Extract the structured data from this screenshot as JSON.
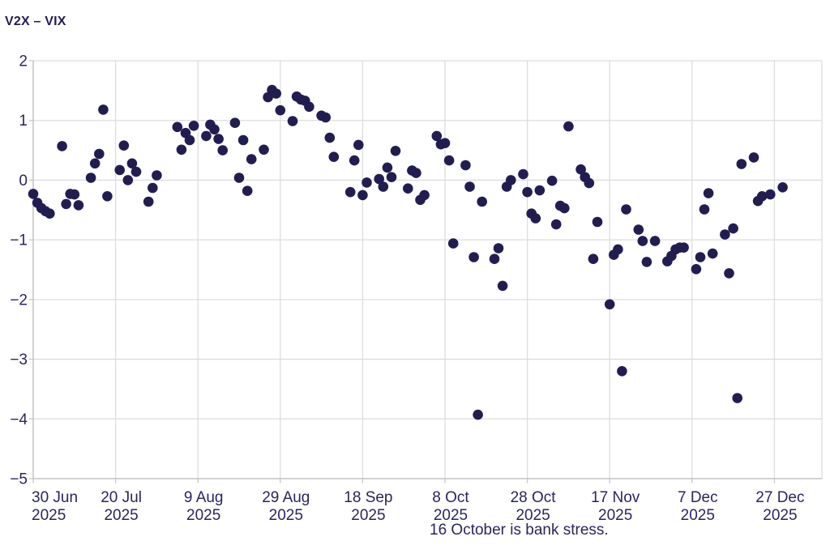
{
  "title": "V2X – VIX",
  "footnote": "16 October is bank stress.",
  "colors": {
    "dot": "#221d51",
    "text": "#2a255e",
    "title_text": "#221d51",
    "grid": "#dddddd",
    "axis": "#c6c6c6",
    "background": "#ffffff"
  },
  "chart_data": {
    "type": "scatter",
    "title": "V2X – VIX",
    "xlabel": "",
    "ylabel": "",
    "grid": true,
    "legend": "none",
    "annotation": "16 October is bank stress.",
    "marker": {
      "shape": "circle",
      "radius_px": 6.3
    },
    "x_axis": {
      "start_date": "2025-06-30",
      "tick_interval_days": 20,
      "ticks": [
        {
          "l1": "30 Jun",
          "l2": "2025"
        },
        {
          "l1": "20 Jul",
          "l2": "2025"
        },
        {
          "l1": "9 Aug",
          "l2": "2025"
        },
        {
          "l1": "29 Aug",
          "l2": "2025"
        },
        {
          "l1": "18 Sep",
          "l2": "2025"
        },
        {
          "l1": "8 Oct",
          "l2": "2025"
        },
        {
          "l1": "28 Oct",
          "l2": "2025"
        },
        {
          "l1": "17 Nov",
          "l2": "2025"
        },
        {
          "l1": "7 Dec",
          "l2": "2025"
        },
        {
          "l1": "27 Dec",
          "l2": "2025"
        }
      ]
    },
    "y_axis": {
      "min": -5,
      "max": 2,
      "tick_step": 1,
      "tick_labels": [
        "2",
        "1",
        "0",
        "−1",
        "−2",
        "−3",
        "−4",
        "−5"
      ]
    },
    "points": [
      {
        "d": "2025-06-30",
        "v": -0.23
      },
      {
        "d": "2025-07-01",
        "v": -0.38
      },
      {
        "d": "2025-07-02",
        "v": -0.47
      },
      {
        "d": "2025-07-03",
        "v": -0.52
      },
      {
        "d": "2025-07-04",
        "v": -0.56
      },
      {
        "d": "2025-07-07",
        "v": 0.57
      },
      {
        "d": "2025-07-08",
        "v": -0.4
      },
      {
        "d": "2025-07-09",
        "v": -0.23
      },
      {
        "d": "2025-07-10",
        "v": -0.24
      },
      {
        "d": "2025-07-11",
        "v": -0.42
      },
      {
        "d": "2025-07-14",
        "v": 0.04
      },
      {
        "d": "2025-07-15",
        "v": 0.28
      },
      {
        "d": "2025-07-16",
        "v": 0.44
      },
      {
        "d": "2025-07-17",
        "v": 1.18
      },
      {
        "d": "2025-07-18",
        "v": -0.27
      },
      {
        "d": "2025-07-21",
        "v": 0.17
      },
      {
        "d": "2025-07-22",
        "v": 0.58
      },
      {
        "d": "2025-07-23",
        "v": 0.0
      },
      {
        "d": "2025-07-24",
        "v": 0.28
      },
      {
        "d": "2025-07-25",
        "v": 0.14
      },
      {
        "d": "2025-07-28",
        "v": -0.36
      },
      {
        "d": "2025-07-29",
        "v": -0.13
      },
      {
        "d": "2025-07-30",
        "v": 0.08
      },
      {
        "d": "2025-08-04",
        "v": 0.89
      },
      {
        "d": "2025-08-05",
        "v": 0.51
      },
      {
        "d": "2025-08-06",
        "v": 0.79
      },
      {
        "d": "2025-08-07",
        "v": 0.67
      },
      {
        "d": "2025-08-08",
        "v": 0.91
      },
      {
        "d": "2025-08-11",
        "v": 0.74
      },
      {
        "d": "2025-08-12",
        "v": 0.93
      },
      {
        "d": "2025-08-13",
        "v": 0.85
      },
      {
        "d": "2025-08-14",
        "v": 0.69
      },
      {
        "d": "2025-08-15",
        "v": 0.5
      },
      {
        "d": "2025-08-18",
        "v": 0.96
      },
      {
        "d": "2025-08-19",
        "v": 0.04
      },
      {
        "d": "2025-08-20",
        "v": 0.67
      },
      {
        "d": "2025-08-21",
        "v": -0.18
      },
      {
        "d": "2025-08-22",
        "v": 0.35
      },
      {
        "d": "2025-08-25",
        "v": 0.51
      },
      {
        "d": "2025-08-26",
        "v": 1.39
      },
      {
        "d": "2025-08-27",
        "v": 1.51
      },
      {
        "d": "2025-08-28",
        "v": 1.45
      },
      {
        "d": "2025-08-29",
        "v": 1.17
      },
      {
        "d": "2025-09-01",
        "v": 0.99
      },
      {
        "d": "2025-09-02",
        "v": 1.4
      },
      {
        "d": "2025-09-03",
        "v": 1.35
      },
      {
        "d": "2025-09-04",
        "v": 1.33
      },
      {
        "d": "2025-09-05",
        "v": 1.23
      },
      {
        "d": "2025-09-08",
        "v": 1.08
      },
      {
        "d": "2025-09-09",
        "v": 1.05
      },
      {
        "d": "2025-09-10",
        "v": 0.71
      },
      {
        "d": "2025-09-11",
        "v": 0.39
      },
      {
        "d": "2025-09-15",
        "v": -0.2
      },
      {
        "d": "2025-09-16",
        "v": 0.33
      },
      {
        "d": "2025-09-17",
        "v": 0.59
      },
      {
        "d": "2025-09-18",
        "v": -0.25
      },
      {
        "d": "2025-09-19",
        "v": -0.04
      },
      {
        "d": "2025-09-22",
        "v": 0.02
      },
      {
        "d": "2025-09-23",
        "v": -0.11
      },
      {
        "d": "2025-09-24",
        "v": 0.21
      },
      {
        "d": "2025-09-25",
        "v": 0.05
      },
      {
        "d": "2025-09-26",
        "v": 0.49
      },
      {
        "d": "2025-09-29",
        "v": -0.14
      },
      {
        "d": "2025-09-30",
        "v": 0.16
      },
      {
        "d": "2025-10-01",
        "v": 0.12
      },
      {
        "d": "2025-10-02",
        "v": -0.33
      },
      {
        "d": "2025-10-03",
        "v": -0.25
      },
      {
        "d": "2025-10-06",
        "v": 0.74
      },
      {
        "d": "2025-10-07",
        "v": 0.6
      },
      {
        "d": "2025-10-08",
        "v": 0.62
      },
      {
        "d": "2025-10-09",
        "v": 0.33
      },
      {
        "d": "2025-10-10",
        "v": -1.06
      },
      {
        "d": "2025-10-13",
        "v": 0.25
      },
      {
        "d": "2025-10-14",
        "v": -0.11
      },
      {
        "d": "2025-10-15",
        "v": -1.29
      },
      {
        "d": "2025-10-16",
        "v": -3.93
      },
      {
        "d": "2025-10-17",
        "v": -0.36
      },
      {
        "d": "2025-10-20",
        "v": -1.32
      },
      {
        "d": "2025-10-21",
        "v": -1.14
      },
      {
        "d": "2025-10-22",
        "v": -1.77
      },
      {
        "d": "2025-10-23",
        "v": -0.11
      },
      {
        "d": "2025-10-24",
        "v": 0.0
      },
      {
        "d": "2025-10-27",
        "v": 0.1
      },
      {
        "d": "2025-10-28",
        "v": -0.2
      },
      {
        "d": "2025-10-29",
        "v": -0.56
      },
      {
        "d": "2025-10-30",
        "v": -0.64
      },
      {
        "d": "2025-10-31",
        "v": -0.17
      },
      {
        "d": "2025-11-03",
        "v": -0.01
      },
      {
        "d": "2025-11-04",
        "v": -0.74
      },
      {
        "d": "2025-11-05",
        "v": -0.43
      },
      {
        "d": "2025-11-06",
        "v": -0.47
      },
      {
        "d": "2025-11-07",
        "v": 0.9
      },
      {
        "d": "2025-11-10",
        "v": 0.18
      },
      {
        "d": "2025-11-11",
        "v": 0.05
      },
      {
        "d": "2025-11-12",
        "v": -0.05
      },
      {
        "d": "2025-11-13",
        "v": -1.32
      },
      {
        "d": "2025-11-14",
        "v": -0.7
      },
      {
        "d": "2025-11-17",
        "v": -2.08
      },
      {
        "d": "2025-11-18",
        "v": -1.25
      },
      {
        "d": "2025-11-19",
        "v": -1.16
      },
      {
        "d": "2025-11-20",
        "v": -3.2
      },
      {
        "d": "2025-11-21",
        "v": -0.49
      },
      {
        "d": "2025-11-24",
        "v": -0.83
      },
      {
        "d": "2025-11-25",
        "v": -1.02
      },
      {
        "d": "2025-11-26",
        "v": -1.37
      },
      {
        "d": "2025-11-28",
        "v": -1.02
      },
      {
        "d": "2025-12-01",
        "v": -1.36
      },
      {
        "d": "2025-12-02",
        "v": -1.27
      },
      {
        "d": "2025-12-03",
        "v": -1.16
      },
      {
        "d": "2025-12-04",
        "v": -1.13
      },
      {
        "d": "2025-12-05",
        "v": -1.13
      },
      {
        "d": "2025-12-08",
        "v": -1.49
      },
      {
        "d": "2025-12-09",
        "v": -1.29
      },
      {
        "d": "2025-12-10",
        "v": -0.49
      },
      {
        "d": "2025-12-11",
        "v": -0.22
      },
      {
        "d": "2025-12-12",
        "v": -1.23
      },
      {
        "d": "2025-12-15",
        "v": -0.91
      },
      {
        "d": "2025-12-16",
        "v": -1.56
      },
      {
        "d": "2025-12-17",
        "v": -0.81
      },
      {
        "d": "2025-12-18",
        "v": -3.65
      },
      {
        "d": "2025-12-19",
        "v": 0.27
      },
      {
        "d": "2025-12-22",
        "v": 0.38
      },
      {
        "d": "2025-12-23",
        "v": -0.35
      },
      {
        "d": "2025-12-24",
        "v": -0.27
      },
      {
        "d": "2025-12-26",
        "v": -0.24
      },
      {
        "d": "2025-12-29",
        "v": -0.12
      }
    ]
  }
}
